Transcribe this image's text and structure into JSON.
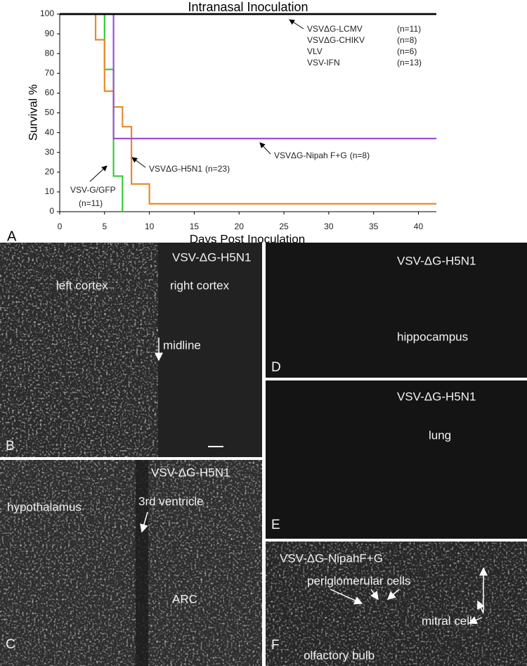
{
  "chart_data": {
    "type": "step",
    "title": "Intranasal Inoculation",
    "panel_label": "A",
    "x_label": "Days Post Inoculation",
    "y_label": "Survival %",
    "xlim": [
      0,
      42
    ],
    "xticks": [
      0,
      5,
      10,
      15,
      20,
      25,
      30,
      35,
      40
    ],
    "ylim": [
      0,
      100
    ],
    "yticks": [
      0,
      10,
      20,
      30,
      40,
      50,
      60,
      70,
      80,
      90,
      100
    ],
    "series": [
      {
        "name": "VSVΔG-LCMV",
        "n_label": "(n=11)",
        "color": "#000000",
        "x": [
          0,
          42
        ],
        "values": [
          100,
          100
        ]
      },
      {
        "name": "VSVΔG-CHIKV",
        "n_label": "(n=8)",
        "color": "#000000",
        "x": [
          0,
          42
        ],
        "values": [
          100,
          100
        ]
      },
      {
        "name": "VLV",
        "n_label": "(n=6)",
        "color": "#000000",
        "x": [
          0,
          42
        ],
        "values": [
          100,
          100
        ]
      },
      {
        "name": "VSV-IFN",
        "n_label": "(n=13)",
        "color": "#000000",
        "x": [
          0,
          42
        ],
        "values": [
          100,
          100
        ]
      },
      {
        "name": "VSV-G/GFP",
        "n_label": "(n=11)",
        "color": "#33cc33",
        "x": [
          0,
          5,
          6,
          7
        ],
        "values": [
          100,
          72,
          18,
          0
        ]
      },
      {
        "name": "VSVΔG-H5N1",
        "n_label": "(n=23)",
        "color": "#e8892e",
        "x": [
          0,
          4,
          5,
          6,
          7,
          8,
          10,
          42
        ],
        "values": [
          100,
          87,
          61,
          53,
          43,
          14,
          4,
          4
        ]
      },
      {
        "name": "VSVΔG-Nipah F+G",
        "n_label": "(n=8)",
        "color": "#9b4fd6",
        "x": [
          0,
          6,
          42
        ],
        "values": [
          100,
          37,
          37
        ]
      }
    ]
  },
  "panels": [
    {
      "letter": "B",
      "virus": "VSV-ΔG-H5N1",
      "labels": [
        "left cortex",
        "right cortex",
        "midline"
      ]
    },
    {
      "letter": "C",
      "virus": "VSV-ΔG-H5N1",
      "labels": [
        "hypothalamus",
        "3rd ventricle",
        "ARC"
      ]
    },
    {
      "letter": "D",
      "virus": "VSV-ΔG-H5N1",
      "labels": [
        "hippocampus"
      ]
    },
    {
      "letter": "E",
      "virus": "VSV-ΔG-H5N1",
      "labels": [
        "lung"
      ]
    },
    {
      "letter": "F",
      "virus": "VSV-ΔG-NipahF+G",
      "labels": [
        "periglomerular cells",
        "mitral cell",
        "olfactory bulb"
      ]
    }
  ]
}
